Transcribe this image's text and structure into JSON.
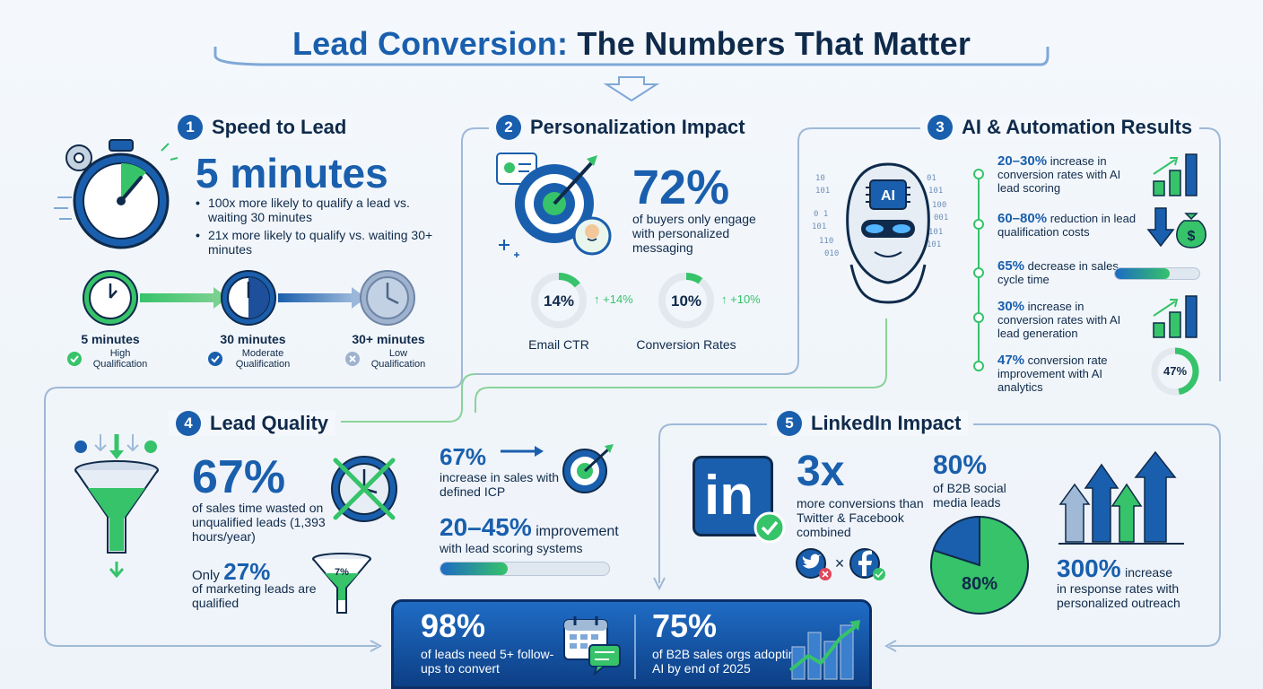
{
  "title": {
    "part1": "Lead Conversion:",
    "part2": "The Numbers That Matter"
  },
  "colors": {
    "blue": "#1a5fad",
    "navy": "#0f2a4a",
    "green": "#36c36a",
    "light_blue": "#7fa8d8"
  },
  "sections": {
    "speed": {
      "number": "1",
      "heading": "Speed to Lead",
      "big": "5 minutes",
      "bullets": [
        "100x more likely to qualify a lead vs. waiting 30 minutes",
        "21x more likely to qualify vs. waiting 30+ minutes"
      ],
      "stages": [
        {
          "label": "5 minutes",
          "qual": "High Qualification",
          "icon": "check-circle-icon"
        },
        {
          "label": "30 minutes",
          "qual": "Moderate Qualification",
          "icon": "check-circle-icon"
        },
        {
          "label": "30+ minutes",
          "qual": "Low Qualification",
          "icon": "x-circle-icon"
        }
      ]
    },
    "personalization": {
      "number": "2",
      "heading": "Personalization Impact",
      "big": "72%",
      "desc": "of buyers only engage with personalized messaging",
      "metrics": [
        {
          "value": "14%",
          "change": "+14%",
          "label": "Email CTR",
          "fraction": 0.14
        },
        {
          "value": "10%",
          "change": "+10%",
          "label": "Conversion Rates",
          "fraction": 0.1
        }
      ]
    },
    "ai": {
      "number": "3",
      "heading": "AI & Automation Results",
      "chip": "AI",
      "items": [
        {
          "bold": "20–30%",
          "rest": "increase in conversion rates with AI lead scoring",
          "icon": "bar-chart-up-icon"
        },
        {
          "bold": "60–80%",
          "rest": "reduction in lead qualification costs",
          "icon": "money-bag-down-icon"
        },
        {
          "bold": "65%",
          "rest": "decrease in sales cycle time",
          "icon": "progress-bar-icon",
          "fraction": 0.65
        },
        {
          "bold": "30%",
          "rest": "increase in conversion rates with AI lead generation",
          "icon": "bar-chart-up-icon"
        },
        {
          "bold": "47%",
          "rest": "conversion rate improvement with AI analytics",
          "icon": "donut-icon",
          "ring": "47%",
          "fraction": 0.47
        }
      ]
    },
    "quality": {
      "number": "4",
      "heading": "Lead Quality",
      "big1": "67%",
      "desc1": "of sales time wasted on unqualified leads (1,393 hours/year)",
      "only": "Only",
      "big2": "27%",
      "desc2": "of marketing leads are qualified",
      "funnel_label": "7%",
      "stat1_big": "67%",
      "stat1_desc": "increase in sales with defined ICP",
      "stat2_big": "20–45%",
      "stat2_rest": "improvement",
      "stat2_desc": "with lead scoring systems",
      "bar_fraction": 0.4
    },
    "linkedin": {
      "number": "5",
      "heading": "LinkedIn Impact",
      "logo": "in",
      "big": "3x",
      "desc": "more conversions than Twitter & Facebook combined",
      "pie_big": "80%",
      "pie_desc": "of B2B social media leads",
      "pie_label": "80%",
      "pie_fraction": 0.8,
      "increase_big": "300%",
      "increase_rest": "increase",
      "increase_desc": "in response rates with personalized outreach"
    }
  },
  "bottom": [
    {
      "big": "98%",
      "desc": "of leads need 5+ follow-ups to convert",
      "icon": "calendar-chat-icon"
    },
    {
      "big": "75%",
      "desc": "of B2B sales orgs adopting AI by end of 2025",
      "icon": "city-growth-icon"
    }
  ]
}
